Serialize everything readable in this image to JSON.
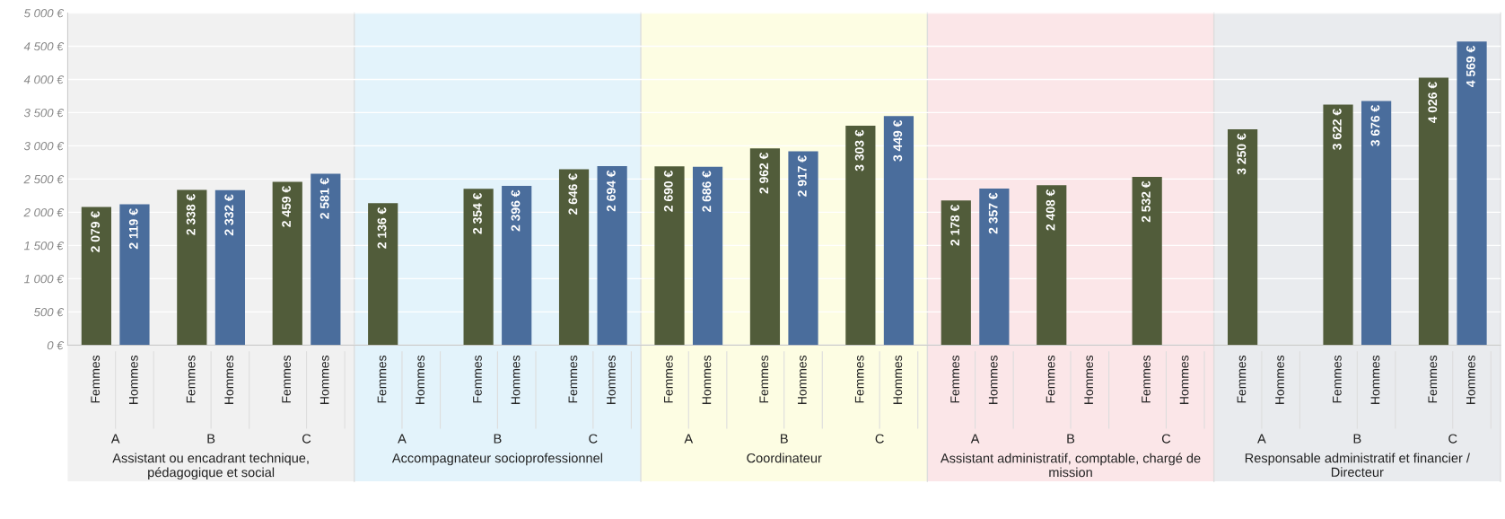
{
  "chart_data": {
    "type": "bar",
    "categories": [
      "A",
      "B",
      "C",
      "A",
      "B",
      "C",
      "A",
      "B",
      "C",
      "A",
      "B",
      "C",
      "A",
      "B",
      "C"
    ],
    "series": [
      {
        "name": "Femmes",
        "color": "#515c3a",
        "values": [
          2079,
          2338,
          2459,
          2136,
          2354,
          2646,
          2690,
          2962,
          3303,
          2178,
          2408,
          2532,
          3250,
          3622,
          4026
        ],
        "value_labels": [
          "2 079 €",
          "2 338 €",
          "2 459 €",
          "2 136 €",
          "2 354 €",
          "2 646 €",
          "2 690 €",
          "2 962 €",
          "3 303 €",
          "2 178 €",
          "2 408 €",
          "2 532 €",
          "3 250 €",
          "3 622 €",
          "4 026 €"
        ]
      },
      {
        "name": "Hommes",
        "color": "#4a6d9c",
        "values": [
          2119,
          2332,
          2581,
          null,
          2396,
          2694,
          2686,
          2917,
          3449,
          2357,
          null,
          null,
          null,
          3676,
          4569
        ],
        "value_labels": [
          "2 119 €",
          "2 332 €",
          "2 581 €",
          null,
          "2 396 €",
          "2 694 €",
          "2 686 €",
          "2 917 €",
          "3 449 €",
          "2 357 €",
          null,
          null,
          null,
          "3 676 €",
          "4 569 €"
        ]
      }
    ],
    "ylim": [
      0,
      5000
    ],
    "yticks": [
      {
        "value": 0,
        "label": "0 €"
      },
      {
        "value": 500,
        "label": "500 €"
      },
      {
        "value": 1000,
        "label": "1 000 €"
      },
      {
        "value": 1500,
        "label": "1 500 €"
      },
      {
        "value": 2000,
        "label": "2 000 €"
      },
      {
        "value": 2500,
        "label": "2 500 €"
      },
      {
        "value": 3000,
        "label": "3 000 €"
      },
      {
        "value": 3500,
        "label": "3 500 €"
      },
      {
        "value": 4000,
        "label": "4 000 €"
      },
      {
        "value": 4500,
        "label": "4 500 €"
      },
      {
        "value": 5000,
        "label": "5 000 €"
      }
    ],
    "grid": "y",
    "annotations": [
      "Assistant ou encadrant technique, pédagogique et social",
      "Accompagnateur socioprofessionnel",
      "Coordinateur",
      "Assistant administratif, comptable, chargé de mission",
      "Responsable administratif et financier / Directeur"
    ]
  }
}
